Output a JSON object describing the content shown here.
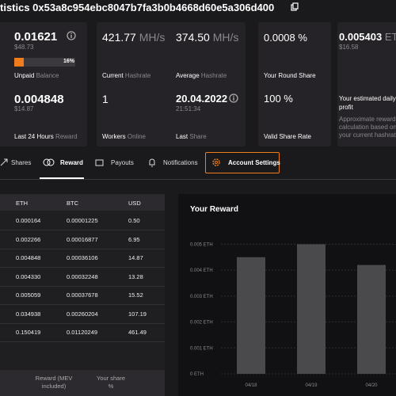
{
  "header": {
    "title": "tistics 0x53a8c954ebc8047b7fa3b0b4668d60e5a306d400"
  },
  "stats": {
    "unpaid": {
      "value": "0.01621",
      "usd": "$48.73",
      "progress": 16,
      "progress_label": "16%",
      "label": "Unpaid",
      "label_muted": "Balance"
    },
    "current_hashrate": {
      "value": "421.77",
      "unit": "MH/s",
      "label": "Current",
      "label_muted": "Hashrate"
    },
    "average_hashrate": {
      "value": "374.50",
      "unit": "MH/s",
      "label": "Average",
      "label_muted": "Hashrate"
    },
    "round_share": {
      "value": "0.0008 %",
      "label": "Your Round Share"
    },
    "estimated": {
      "value": "0.005403",
      "unit": "ETH",
      "usd": "$16.58",
      "label": "Your estimated daily profit",
      "note": "Approximate reward calculation based on your current hashrate"
    },
    "last_24h": {
      "value": "0.004848",
      "usd": "$14.87",
      "label": "Last 24 Hours",
      "label_muted": "Reward"
    },
    "workers": {
      "value": "1",
      "label": "Workers",
      "label_muted": "Online"
    },
    "last_share": {
      "value": "20.04.2022",
      "time": "21:51:34",
      "label": "Last",
      "label_muted": "Share"
    },
    "valid": {
      "value": "100 %",
      "label": "Valid Share Rate"
    }
  },
  "tabs": [
    "Shares",
    "Reward",
    "Payouts",
    "Notifications",
    "Account Settings"
  ],
  "table": {
    "columns": [
      "ETH",
      "BTC",
      "USD"
    ],
    "rows": [
      [
        "0.000164",
        "0.00001225",
        "0.50"
      ],
      [
        "0.002266",
        "0.00016877",
        "6.95"
      ],
      [
        "0.004848",
        "0.00036106",
        "14.87"
      ],
      [
        "0.004330",
        "0.00032248",
        "13.28"
      ],
      [
        "0.005059",
        "0.00037678",
        "15.52"
      ],
      [
        "0.034938",
        "0.00260204",
        "107.19"
      ],
      [
        "0.150419",
        "0.01120249",
        "461.49"
      ]
    ],
    "footer": [
      "Reward (MEV included)",
      "Your share %"
    ]
  },
  "reward_chart": {
    "type": "bar",
    "title": "Your Reward",
    "categories": [
      "04/18",
      "04/19",
      "04/20"
    ],
    "values": [
      0.0045,
      0.005,
      0.0042
    ],
    "color": "#4a4a4c",
    "ylim": [
      0,
      0.0055
    ],
    "yticks": [
      {
        "value": 0,
        "label": "0 ETH"
      },
      {
        "value": 0.001,
        "label": "0.001 ETH"
      },
      {
        "value": 0.002,
        "label": "0.002 ETH"
      },
      {
        "value": 0.003,
        "label": "0.003 ETH"
      },
      {
        "value": 0.004,
        "label": "0.004 ETH"
      },
      {
        "value": 0.005,
        "label": "0.005 ETH"
      }
    ],
    "grid": true
  }
}
